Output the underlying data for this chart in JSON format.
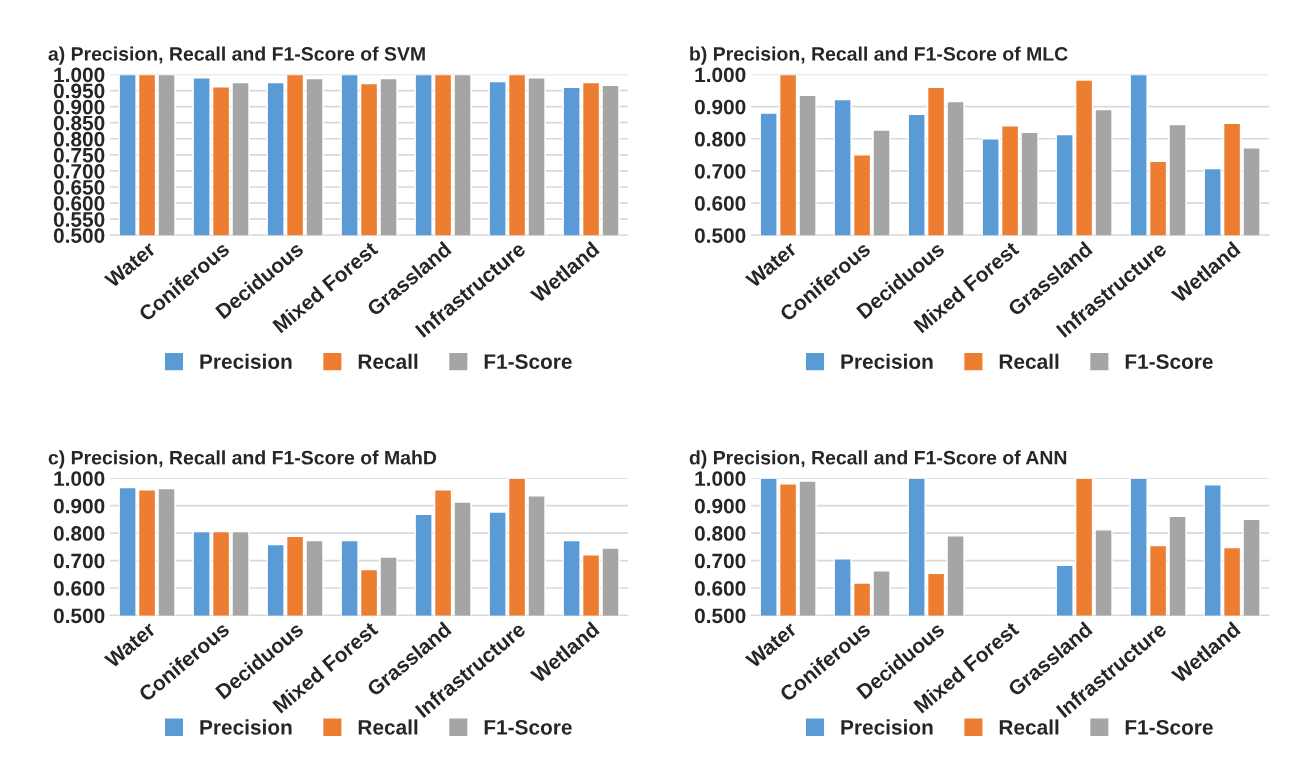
{
  "chart_data": [
    {
      "type": "bar",
      "title": "a) Precision, Recall and F1-Score of SVM",
      "categories": [
        "Water",
        "Coniferous",
        "Deciduous",
        "Mixed Forest",
        "Grassland",
        "Infrastructure",
        "Wetland"
      ],
      "series": [
        {
          "name": "Precision",
          "color": "#5b9bd5",
          "values": [
            1.0,
            0.99,
            0.975,
            1.0,
            1.0,
            0.978,
            0.96
          ]
        },
        {
          "name": "Recall",
          "color": "#ed7d31",
          "values": [
            1.0,
            0.962,
            1.0,
            0.972,
            1.0,
            1.0,
            0.975
          ]
        },
        {
          "name": "F1-Score",
          "color": "#a5a5a5",
          "values": [
            1.0,
            0.975,
            0.987,
            0.987,
            1.0,
            0.99,
            0.966
          ]
        }
      ],
      "ylim": [
        0.5,
        1.0
      ],
      "yticks": [
        {
          "value": 0.5,
          "label": "0.500"
        },
        {
          "value": 0.55,
          "label": "0.550"
        },
        {
          "value": 0.6,
          "label": "0.600"
        },
        {
          "value": 0.65,
          "label": "0.650"
        },
        {
          "value": 0.7,
          "label": "0.700"
        },
        {
          "value": 0.75,
          "label": "0.750"
        },
        {
          "value": 0.8,
          "label": "0.800"
        },
        {
          "value": 0.85,
          "label": "0.850"
        },
        {
          "value": 0.9,
          "label": "0.900"
        },
        {
          "value": 0.95,
          "label": "0.950"
        },
        {
          "value": 1.0,
          "label": "1.000"
        }
      ],
      "grid": "y",
      "legend": "bottom"
    },
    {
      "type": "bar",
      "title": "b) Precision, Recall and F1-Score of MLC",
      "categories": [
        "Water",
        "Coniferous",
        "Deciduous",
        "Mixed Forest",
        "Grassland",
        "Infrastructure",
        "Wetland"
      ],
      "series": [
        {
          "name": "Precision",
          "color": "#5b9bd5",
          "values": [
            0.88,
            0.922,
            0.876,
            0.8,
            0.813,
            1.0,
            0.707
          ]
        },
        {
          "name": "Recall",
          "color": "#ed7d31",
          "values": [
            1.0,
            0.75,
            0.96,
            0.84,
            0.983,
            0.73,
            0.848
          ]
        },
        {
          "name": "F1-Score",
          "color": "#a5a5a5",
          "values": [
            0.935,
            0.827,
            0.916,
            0.82,
            0.891,
            0.844,
            0.772
          ]
        }
      ],
      "ylim": [
        0.5,
        1.0
      ],
      "yticks": [
        {
          "value": 0.5,
          "label": "0.500"
        },
        {
          "value": 0.6,
          "label": "0.600"
        },
        {
          "value": 0.7,
          "label": "0.700"
        },
        {
          "value": 0.8,
          "label": "0.800"
        },
        {
          "value": 0.9,
          "label": "0.900"
        },
        {
          "value": 1.0,
          "label": "1.000"
        }
      ],
      "grid": "y",
      "legend": "bottom"
    },
    {
      "type": "bar",
      "title": "c) Precision, Recall and F1-Score of MahD",
      "categories": [
        "Water",
        "Coniferous",
        "Deciduous",
        "Mixed Forest",
        "Grassland",
        "Infrastructure",
        "Wetland"
      ],
      "series": [
        {
          "name": "Precision",
          "color": "#5b9bd5",
          "values": [
            0.966,
            0.806,
            0.758,
            0.773,
            0.869,
            0.877,
            0.773
          ]
        },
        {
          "name": "Recall",
          "color": "#ed7d31",
          "values": [
            0.958,
            0.806,
            0.788,
            0.667,
            0.958,
            1.0,
            0.721
          ]
        },
        {
          "name": "F1-Score",
          "color": "#a5a5a5",
          "values": [
            0.962,
            0.806,
            0.773,
            0.713,
            0.913,
            0.936,
            0.746
          ]
        }
      ],
      "ylim": [
        0.5,
        1.0
      ],
      "yticks": [
        {
          "value": 0.5,
          "label": "0.500"
        },
        {
          "value": 0.6,
          "label": "0.600"
        },
        {
          "value": 0.7,
          "label": "0.700"
        },
        {
          "value": 0.8,
          "label": "0.800"
        },
        {
          "value": 0.9,
          "label": "0.900"
        },
        {
          "value": 1.0,
          "label": "1.000"
        }
      ],
      "grid": "y",
      "legend": "bottom"
    },
    {
      "type": "bar",
      "title": "d) Precision, Recall and F1-Score of ANN",
      "categories": [
        "Water",
        "Coniferous",
        "Deciduous",
        "Mixed Forest",
        "Grassland",
        "Infrastructure",
        "Wetland"
      ],
      "series": [
        {
          "name": "Precision",
          "color": "#5b9bd5",
          "values": [
            1.0,
            0.706,
            1.0,
            null,
            0.683,
            1.0,
            0.976
          ]
        },
        {
          "name": "Recall",
          "color": "#ed7d31",
          "values": [
            0.98,
            0.618,
            0.654,
            null,
            1.0,
            0.755,
            0.747
          ]
        },
        {
          "name": "F1-Score",
          "color": "#a5a5a5",
          "values": [
            0.99,
            0.663,
            0.79,
            null,
            0.812,
            0.861,
            0.85
          ]
        }
      ],
      "ylim": [
        0.5,
        1.0
      ],
      "yticks": [
        {
          "value": 0.5,
          "label": "0.500"
        },
        {
          "value": 0.6,
          "label": "0.600"
        },
        {
          "value": 0.7,
          "label": "0.700"
        },
        {
          "value": 0.8,
          "label": "0.800"
        },
        {
          "value": 0.9,
          "label": "0.900"
        },
        {
          "value": 1.0,
          "label": "1.000"
        }
      ],
      "grid": "y",
      "legend": "bottom"
    }
  ]
}
